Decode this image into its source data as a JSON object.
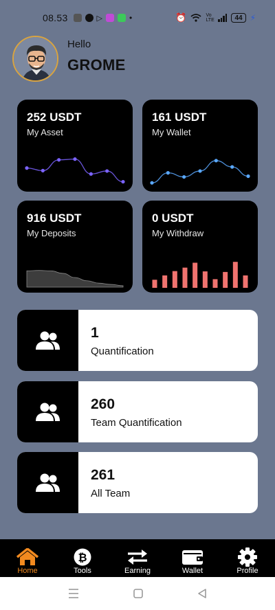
{
  "status": {
    "time": "08.53",
    "battery": "44",
    "net_label": "Vo LTE"
  },
  "header": {
    "greeting": "Hello",
    "username": "GROME"
  },
  "cards": [
    {
      "value": "252 USDT",
      "label": "My Asset",
      "chart": "line",
      "series": [
        6.0,
        5.3,
        8.2,
        8.4,
        4.4,
        5.2,
        2.3
      ]
    },
    {
      "value": "161 USDT",
      "label": "My Wallet",
      "chart": "line",
      "series": [
        2.0,
        4.7,
        3.6,
        5.2,
        8.0,
        6.3,
        3.8
      ]
    },
    {
      "value": "916 USDT",
      "label": "My Deposits",
      "chart": "area",
      "series": [
        9.0,
        9.2,
        9.0,
        7.6,
        5.3,
        3.5,
        2.2,
        1.5,
        0.8
      ]
    },
    {
      "value": "0 USDT",
      "label": "My Withdraw",
      "chart": "bar",
      "series": [
        2.8,
        4.3,
        5.8,
        7.0,
        8.7,
        5.7,
        3.0,
        5.5,
        9.0,
        4.3
      ]
    }
  ],
  "colors": {
    "asset_line": "#7b63ff",
    "wallet_line": "#5aa8ff",
    "deposit_area": "#3d3d3d",
    "withdraw_bar": "#f0736f",
    "nav_active": "#f28a1f",
    "background": "#6b778f"
  },
  "stats": [
    {
      "value": "1",
      "label": "Quantification",
      "icon": "users-icon"
    },
    {
      "value": "260",
      "label": "Team Quantification",
      "icon": "users-icon"
    },
    {
      "value": "261",
      "label": "All Team",
      "icon": "users-icon"
    }
  ],
  "nav": [
    {
      "label": "Home",
      "icon": "home-icon",
      "active": true
    },
    {
      "label": "Tools",
      "icon": "bitcoin-icon",
      "active": false
    },
    {
      "label": "Earning",
      "icon": "transfer-icon",
      "active": false
    },
    {
      "label": "Wallet",
      "icon": "wallet-icon",
      "active": false
    },
    {
      "label": "Profile",
      "icon": "gear-icon",
      "active": false
    }
  ]
}
